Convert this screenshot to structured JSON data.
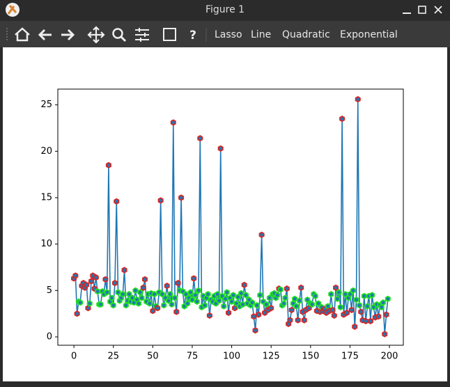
{
  "window": {
    "title": "Figure 1"
  },
  "toolbar": {
    "buttons": [
      "Lasso",
      "Line",
      "Quadratic",
      "Exponential"
    ]
  },
  "chart_data": {
    "type": "line",
    "x": [
      0,
      1,
      2,
      3,
      4,
      5,
      6,
      7,
      8,
      9,
      10,
      11,
      12,
      13,
      14,
      15,
      16,
      17,
      18,
      19,
      20,
      21,
      22,
      23,
      24,
      25,
      26,
      27,
      28,
      29,
      30,
      31,
      32,
      33,
      34,
      35,
      36,
      37,
      38,
      39,
      40,
      41,
      42,
      43,
      44,
      45,
      46,
      47,
      48,
      49,
      50,
      51,
      52,
      53,
      54,
      55,
      56,
      57,
      58,
      59,
      60,
      61,
      62,
      63,
      64,
      65,
      66,
      67,
      68,
      69,
      70,
      71,
      72,
      73,
      74,
      75,
      76,
      77,
      78,
      79,
      80,
      81,
      82,
      83,
      84,
      85,
      86,
      87,
      88,
      89,
      90,
      91,
      92,
      93,
      94,
      95,
      96,
      97,
      98,
      99,
      100,
      101,
      102,
      103,
      104,
      105,
      106,
      107,
      108,
      109,
      110,
      111,
      112,
      113,
      114,
      115,
      116,
      117,
      118,
      119,
      120,
      121,
      122,
      123,
      124,
      125,
      126,
      127,
      128,
      129,
      130,
      131,
      132,
      133,
      134,
      135,
      136,
      137,
      138,
      139,
      140,
      141,
      142,
      143,
      144,
      145,
      146,
      147,
      148,
      149,
      150,
      151,
      152,
      153,
      154,
      155,
      156,
      157,
      158,
      159,
      160,
      161,
      162,
      163,
      164,
      165,
      166,
      167,
      168,
      169,
      170,
      171,
      172,
      173,
      174,
      175,
      176,
      177,
      178,
      179,
      180,
      181,
      182,
      183,
      184,
      185,
      186,
      187,
      188,
      189,
      190,
      191,
      192,
      193,
      194,
      195,
      196,
      197,
      198,
      199
    ],
    "values": [
      6.3,
      6.6,
      2.5,
      3.8,
      3.7,
      5.5,
      5.8,
      5.3,
      5.6,
      3.1,
      3.6,
      6.0,
      6.6,
      5.2,
      6.4,
      4.9,
      3.5,
      3.5,
      4.9,
      4.6,
      6.2,
      4.8,
      18.5,
      3.8,
      4.2,
      3.4,
      5.8,
      14.6,
      4.8,
      3.9,
      4.2,
      4.6,
      7.2,
      3.4,
      3.9,
      4.6,
      3.8,
      4.2,
      3.7,
      5.0,
      4.0,
      3.6,
      4.8,
      4.2,
      5.3,
      6.2,
      3.8,
      4.6,
      3.6,
      4.7,
      2.8,
      4.6,
      3.3,
      3.1,
      4.8,
      14.7,
      4.6,
      3.4,
      4.2,
      5.5,
      3.9,
      4.6,
      3.5,
      23.1,
      4.2,
      2.7,
      5.8,
      5.0,
      15.0,
      4.9,
      3.3,
      4.6,
      3.6,
      4.2,
      4.8,
      4.0,
      6.3,
      4.5,
      3.8,
      5.0,
      21.4,
      3.2,
      4.4,
      3.4,
      4.2,
      4.6,
      2.3,
      4.0,
      3.8,
      4.4,
      3.6,
      4.6,
      3.9,
      20.3,
      4.4,
      3.3,
      4.1,
      4.8,
      2.6,
      4.2,
      3.8,
      4.5,
      3.1,
      3.6,
      4.3,
      3.3,
      4.7,
      3.5,
      5.6,
      4.5,
      3.6,
      4.0,
      3.4,
      3.7,
      2.2,
      0.7,
      3.4,
      2.4,
      4.5,
      11.0,
      3.8,
      2.6,
      3.5,
      2.9,
      4.2,
      3.1,
      4.6,
      4.7,
      4.2,
      4.5,
      5.2,
      5.1,
      3.4,
      3.6,
      4.2,
      5.2,
      1.4,
      1.8,
      2.9,
      3.6,
      4.1,
      3.3,
      1.8,
      3.9,
      5.3,
      2.7,
      1.8,
      2.9,
      4.0,
      3.1,
      3.6,
      3.5,
      4.6,
      4.4,
      2.8,
      3.6,
      2.7,
      3.2,
      2.8,
      3.0,
      2.6,
      3.3,
      2.8,
      4.6,
      2.9,
      2.3,
      5.3,
      4.1,
      4.8,
      3.2,
      23.5,
      2.4,
      4.6,
      2.6,
      4.2,
      4.6,
      2.9,
      5.0,
      1.1,
      4.0,
      25.6,
      3.4,
      2.7,
      1.8,
      4.4,
      1.7,
      3.3,
      4.4,
      1.7,
      4.5,
      3.2,
      2.1,
      3.5,
      2.2,
      3.4,
      3.2,
      3.7,
      0.3,
      2.4,
      4.1
    ],
    "color": "#1f77b4",
    "marker_fill": "#1f77b4",
    "marker_edge_colors": [
      "#d62728",
      "#d62728",
      "#d62728",
      "#22e022",
      "#22e022",
      "#d62728",
      "#d62728",
      "#d62728",
      "#d62728",
      "#d62728",
      "#22e022",
      "#d62728",
      "#d62728",
      "#d62728",
      "#d62728",
      "#22e022",
      "#22e022",
      "#22e022",
      "#22e022",
      "#22e022",
      "#d62728",
      "#22e022",
      "#d62728",
      "#22e022",
      "#22e022",
      "#22e022",
      "#d62728",
      "#d62728",
      "#22e022",
      "#22e022",
      "#22e022",
      "#22e022",
      "#d62728",
      "#22e022",
      "#22e022",
      "#22e022",
      "#22e022",
      "#22e022",
      "#22e022",
      "#22e022",
      "#22e022",
      "#22e022",
      "#22e022",
      "#22e022",
      "#d62728",
      "#d62728",
      "#22e022",
      "#22e022",
      "#22e022",
      "#22e022",
      "#d62728",
      "#22e022",
      "#22e022",
      "#d62728",
      "#22e022",
      "#d62728",
      "#22e022",
      "#22e022",
      "#22e022",
      "#d62728",
      "#22e022",
      "#22e022",
      "#22e022",
      "#d62728",
      "#22e022",
      "#d62728",
      "#d62728",
      "#22e022",
      "#d62728",
      "#22e022",
      "#22e022",
      "#22e022",
      "#22e022",
      "#22e022",
      "#22e022",
      "#22e022",
      "#d62728",
      "#22e022",
      "#22e022",
      "#22e022",
      "#d62728",
      "#22e022",
      "#22e022",
      "#22e022",
      "#22e022",
      "#22e022",
      "#d62728",
      "#22e022",
      "#22e022",
      "#22e022",
      "#22e022",
      "#22e022",
      "#22e022",
      "#d62728",
      "#22e022",
      "#22e022",
      "#22e022",
      "#22e022",
      "#d62728",
      "#22e022",
      "#22e022",
      "#22e022",
      "#d62728",
      "#22e022",
      "#22e022",
      "#22e022",
      "#22e022",
      "#22e022",
      "#d62728",
      "#22e022",
      "#22e022",
      "#22e022",
      "#22e022",
      "#22e022",
      "#d62728",
      "#d62728",
      "#22e022",
      "#d62728",
      "#22e022",
      "#d62728",
      "#22e022",
      "#d62728",
      "#22e022",
      "#d62728",
      "#22e022",
      "#d62728",
      "#22e022",
      "#22e022",
      "#22e022",
      "#22e022",
      "#d62728",
      "#22e022",
      "#22e022",
      "#22e022",
      "#22e022",
      "#d62728",
      "#d62728",
      "#d62728",
      "#d62728",
      "#22e022",
      "#22e022",
      "#22e022",
      "#d62728",
      "#22e022",
      "#d62728",
      "#d62728",
      "#d62728",
      "#d62728",
      "#22e022",
      "#d62728",
      "#22e022",
      "#22e022",
      "#22e022",
      "#22e022",
      "#d62728",
      "#22e022",
      "#d62728",
      "#22e022",
      "#d62728",
      "#d62728",
      "#d62728",
      "#22e022",
      "#d62728",
      "#22e022",
      "#d62728",
      "#d62728",
      "#d62728",
      "#22e022",
      "#22e022",
      "#22e022",
      "#d62728",
      "#d62728",
      "#22e022",
      "#d62728",
      "#22e022",
      "#22e022",
      "#d62728",
      "#22e022",
      "#d62728",
      "#22e022",
      "#d62728",
      "#22e022",
      "#d62728",
      "#d62728",
      "#22e022",
      "#d62728",
      "#22e022",
      "#22e022",
      "#d62728",
      "#22e022",
      "#22e022",
      "#d62728",
      "#22e022",
      "#d62728",
      "#22e022",
      "#22e022",
      "#22e022",
      "#d62728",
      "#d62728",
      "#22e022"
    ],
    "xlim": [
      -10.2,
      208.8
    ],
    "ylim": [
      -0.9,
      26.7
    ],
    "xticks": [
      0,
      25,
      50,
      75,
      100,
      125,
      150,
      175,
      200
    ],
    "yticks": [
      0,
      5,
      10,
      15,
      20,
      25
    ]
  }
}
